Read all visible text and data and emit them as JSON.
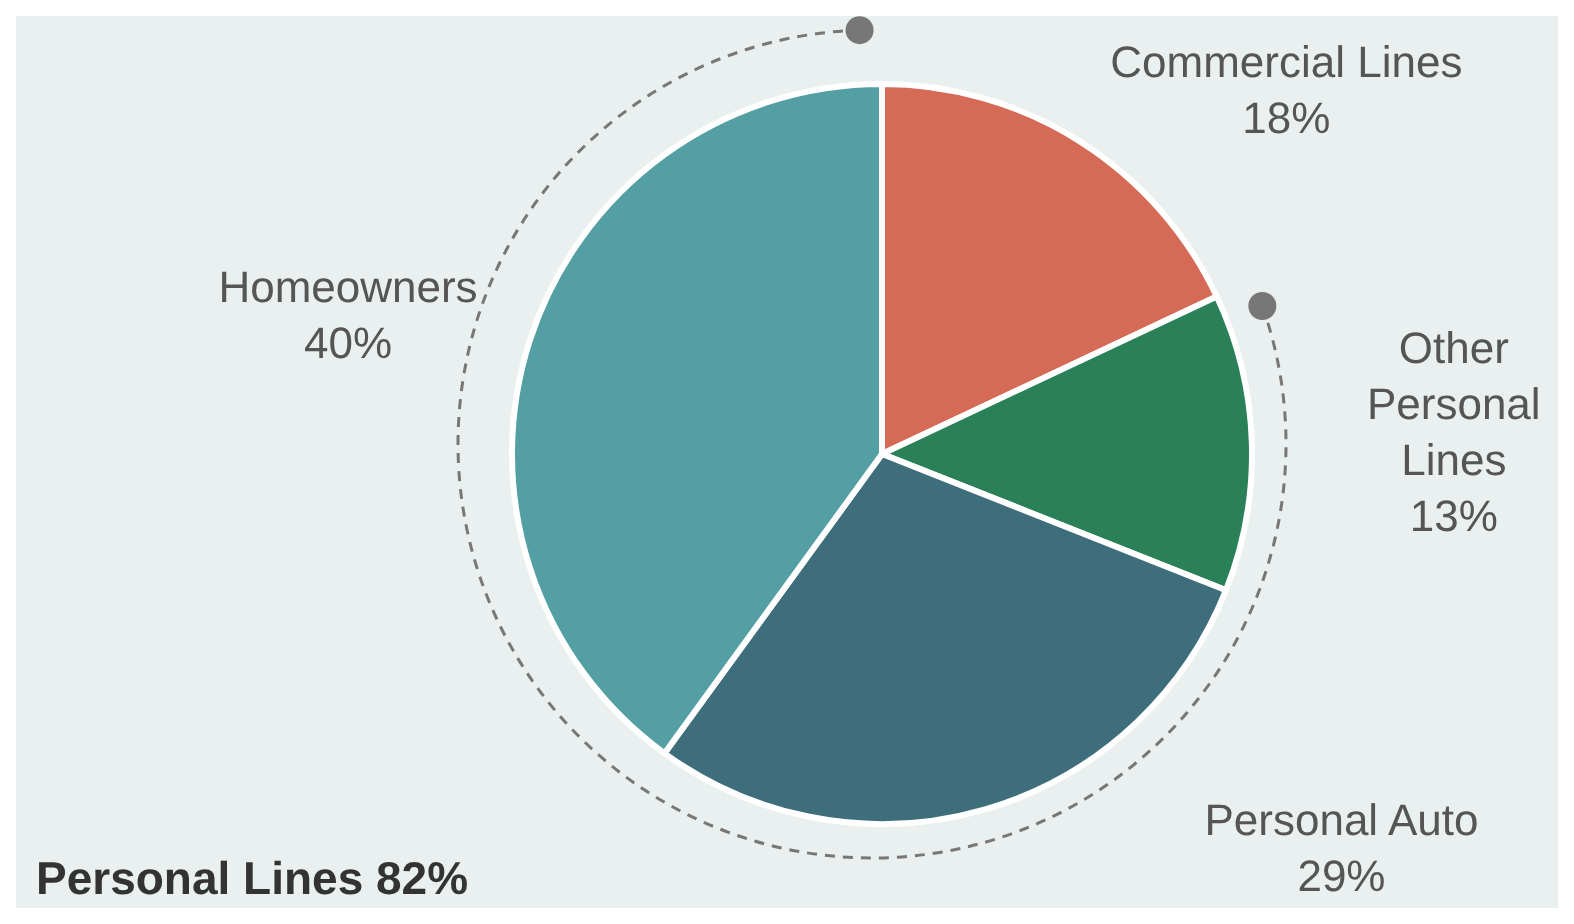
{
  "chart_data": {
    "type": "pie",
    "categories": [
      "Commercial Lines",
      "Other Personal Lines",
      "Personal Auto",
      "Homeowners"
    ],
    "values": [
      18,
      13,
      29,
      40
    ],
    "colors": [
      "#d56a56",
      "#2a8157",
      "#3e6e7b",
      "#539fa4"
    ],
    "value_labels": [
      "18%",
      "13%",
      "29%",
      "40%"
    ],
    "annotations": [
      "Personal Lines 82%"
    ]
  }
}
